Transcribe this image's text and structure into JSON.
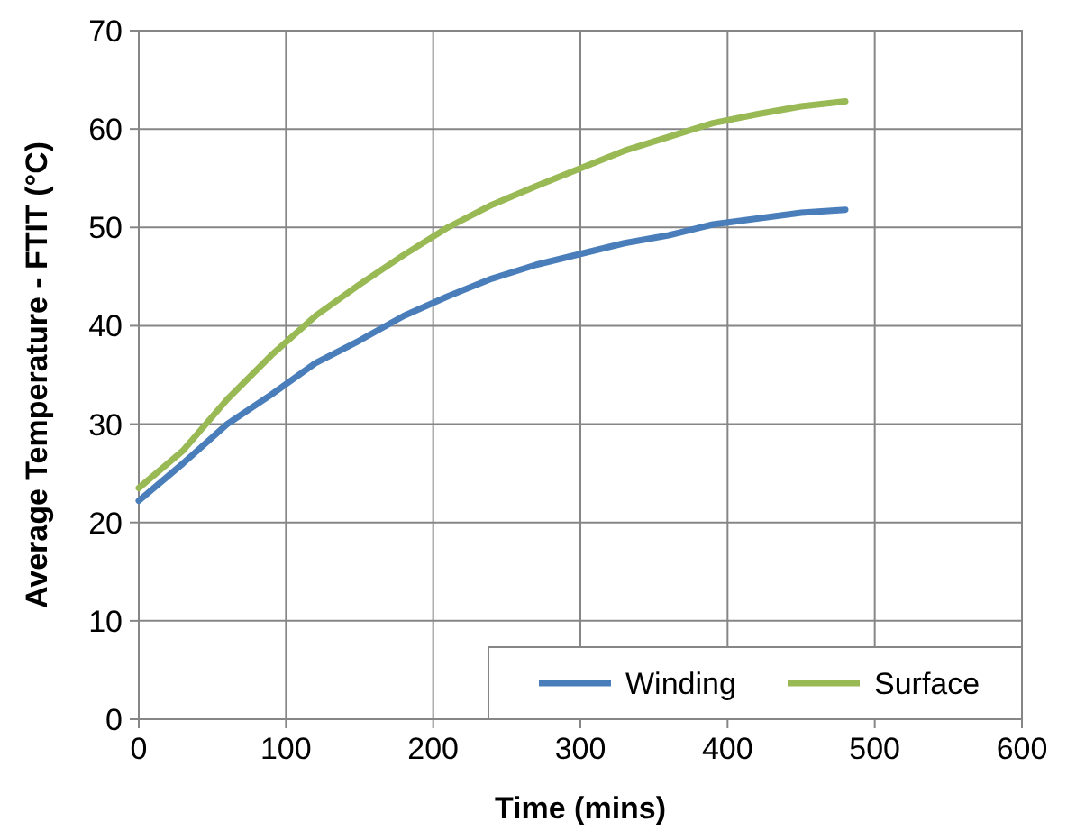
{
  "chart_data": {
    "type": "line",
    "xlabel": "Time (mins)",
    "ylabel": "Average Temperature - FTIT (°C)",
    "x": [
      0,
      30,
      60,
      90,
      120,
      150,
      180,
      210,
      240,
      270,
      300,
      330,
      360,
      390,
      420,
      450,
      480
    ],
    "series": [
      {
        "name": "Winding",
        "color": "#4a7ebb",
        "values": [
          22.2,
          26,
          30,
          33,
          36.2,
          38.5,
          41,
          43,
          44.8,
          46.2,
          47.3,
          48.4,
          49.2,
          50.3,
          50.9,
          51.5,
          51.8
        ]
      },
      {
        "name": "Surface",
        "color": "#98b954",
        "values": [
          23.5,
          27.3,
          32.5,
          37,
          41,
          44.2,
          47.2,
          50,
          52.3,
          54.2,
          56,
          57.8,
          59.2,
          60.6,
          61.5,
          62.3,
          62.8
        ]
      }
    ],
    "xlim": [
      0,
      600
    ],
    "xticks": [
      0,
      100,
      200,
      300,
      400,
      500,
      600
    ],
    "ylim": [
      0,
      70
    ],
    "yticks": [
      0,
      10,
      20,
      30,
      40,
      50,
      60,
      70
    ],
    "grid": true,
    "legend": "bottom right",
    "marker": "none",
    "line_style": "solid"
  }
}
